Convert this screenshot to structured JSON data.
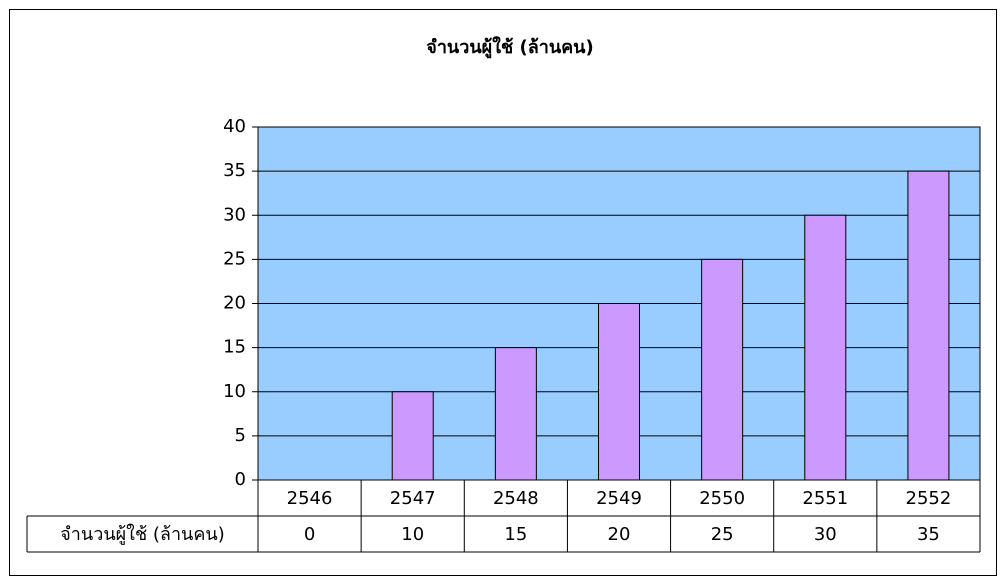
{
  "chart_data": {
    "type": "bar",
    "title": "จำนวนผู้ใช้ (ล้านคน)",
    "categories": [
      "2546",
      "2547",
      "2548",
      "2549",
      "2550",
      "2551",
      "2552"
    ],
    "series": [
      {
        "name": "จำนวนผู้ใช้ (ล้านคน)",
        "color": "#cc99ff",
        "values": [
          0,
          10,
          15,
          20,
          25,
          30,
          35
        ]
      }
    ],
    "ylim": [
      0,
      40
    ],
    "yticks": [
      0,
      5,
      10,
      15,
      20,
      25,
      30,
      35,
      40
    ],
    "grid": true,
    "plot_background": "#99ccff",
    "data_table": true
  }
}
